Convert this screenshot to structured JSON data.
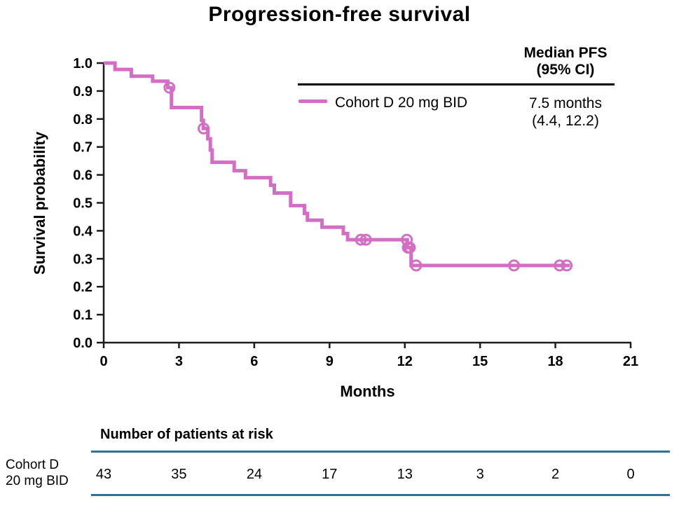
{
  "title": "Progression-free survival",
  "colors": {
    "curve": "#d26fc4",
    "axis": "#1c1c1c",
    "table_rule": "#2f7393"
  },
  "legend": {
    "header_line1": "Median PFS",
    "header_line2": "(95% CI)",
    "series_label": "Cohort D 20 mg BID",
    "value_line1": "7.5 months",
    "value_line2": "(4.4, 12.2)"
  },
  "chart_data": {
    "type": "line",
    "subtype": "kaplan-meier-step",
    "title": "Progression-free survival",
    "xlabel": "Months",
    "ylabel": "Survival probability",
    "xlim": [
      0,
      21
    ],
    "ylim": [
      0.0,
      1.0
    ],
    "xticks": [
      0,
      3,
      6,
      9,
      12,
      15,
      18,
      21
    ],
    "yticks": [
      0.0,
      0.1,
      0.2,
      0.3,
      0.4,
      0.5,
      0.6,
      0.7,
      0.8,
      0.9,
      1.0
    ],
    "grid": false,
    "legend_position": "top-right",
    "series": [
      {
        "name": "Cohort D 20 mg BID",
        "color": "#d26fc4",
        "n": 43,
        "median": "7.5 months",
        "ci95": "(4.4, 12.2)",
        "end_time": 18.58,
        "steps": [
          [
            0.0,
            1.0
          ],
          [
            0.45,
            0.977
          ],
          [
            1.1,
            0.953
          ],
          [
            1.95,
            0.935
          ],
          [
            2.55,
            0.912
          ],
          [
            2.7,
            0.841
          ],
          [
            3.9,
            0.795
          ],
          [
            3.97,
            0.766
          ],
          [
            4.15,
            0.729
          ],
          [
            4.25,
            0.689
          ],
          [
            4.32,
            0.645
          ],
          [
            5.2,
            0.615
          ],
          [
            5.65,
            0.59
          ],
          [
            6.65,
            0.563
          ],
          [
            6.8,
            0.535
          ],
          [
            7.45,
            0.49
          ],
          [
            8.0,
            0.462
          ],
          [
            8.12,
            0.438
          ],
          [
            8.7,
            0.413
          ],
          [
            9.55,
            0.39
          ],
          [
            9.72,
            0.368
          ],
          [
            12.1,
            0.34
          ],
          [
            12.25,
            0.276
          ]
        ],
        "censor_marks": [
          [
            2.62,
            0.912
          ],
          [
            3.98,
            0.766
          ],
          [
            10.25,
            0.368
          ],
          [
            10.45,
            0.368
          ],
          [
            12.08,
            0.368
          ],
          [
            12.12,
            0.34
          ],
          [
            12.2,
            0.34
          ],
          [
            12.45,
            0.276
          ],
          [
            16.35,
            0.276
          ],
          [
            18.17,
            0.276
          ],
          [
            18.45,
            0.276
          ]
        ]
      }
    ]
  },
  "at_risk": {
    "header": "Number of patients at risk",
    "row_label_line1": "Cohort D",
    "row_label_line2": "20 mg BID",
    "times": [
      0,
      3,
      6,
      9,
      12,
      15,
      18,
      21
    ],
    "counts": [
      "43",
      "35",
      "24",
      "17",
      "13",
      "3",
      "2",
      "0"
    ]
  }
}
